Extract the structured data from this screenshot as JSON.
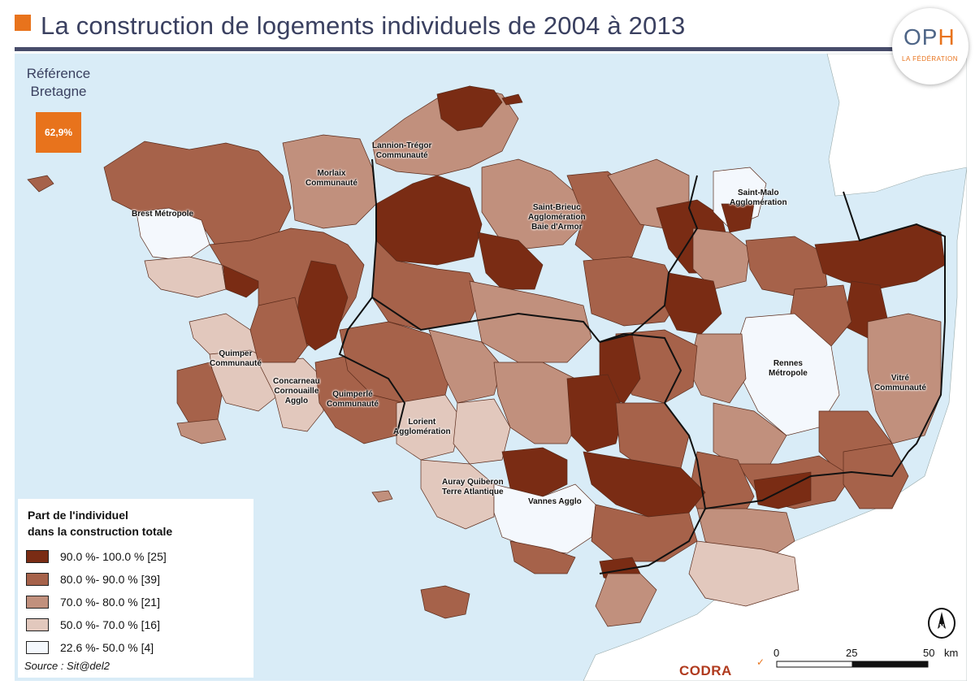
{
  "title": "La construction de logements individuels de 2004 à 2013",
  "logo": {
    "main_o": "OP",
    "main_h": "H",
    "sub": "LA FÉDÉRATION"
  },
  "reference": {
    "label_line1": "Référence",
    "label_line2": "Bretagne",
    "value": "62,9%",
    "color": "#e8731c"
  },
  "legend": {
    "title_line1": "Part de l'individuel",
    "title_line2": "dans la construction totale",
    "classes": [
      {
        "label": "90.0 %- 100.0 % [25]",
        "color": "#7a2c14",
        "range": [
          90.0,
          100.0
        ],
        "count": 25
      },
      {
        "label": "80.0 %- 90.0 % [39]",
        "color": "#a6624a",
        "range": [
          80.0,
          90.0
        ],
        "count": 39
      },
      {
        "label": "70.0 %- 80.0 % [21]",
        "color": "#c1907d",
        "range": [
          70.0,
          80.0
        ],
        "count": 21
      },
      {
        "label": "50.0 %- 70.0 % [16]",
        "color": "#e2c8bd",
        "range": [
          50.0,
          70.0
        ],
        "count": 16
      },
      {
        "label": "22.6 %- 50.0 % [4]",
        "color": "#f4f8fd",
        "range": [
          22.6,
          50.0
        ],
        "count": 4
      }
    ]
  },
  "places": {
    "brest": "Brest Métropole",
    "lannion_1": "Lannion-Trégor",
    "lannion_2": "Communauté",
    "morlaix_1": "Morlaix",
    "morlaix_2": "Communauté",
    "saintbrieuc_1": "Saint-Brieuc",
    "saintbrieuc_2": "Agglomération",
    "saintbrieuc_3": "Baie d'Armor",
    "saintmalo_1": "Saint-Malo",
    "saintmalo_2": "Agglomération",
    "quimper_1": "Quimper",
    "quimper_2": "Communauté",
    "concarneau_1": "Concarneau",
    "concarneau_2": "Cornouaille",
    "concarneau_3": "Agglo",
    "quimperle_1": "Quimperlé",
    "quimperle_2": "Communauté",
    "lorient_1": "Lorient",
    "lorient_2": "Agglomération",
    "rennes_1": "Rennes",
    "rennes_2": "Métropole",
    "vitre_1": "Vitré",
    "vitre_2": "Communauté",
    "auray_1": "Auray Quiberon",
    "auray_2": "Terre Atlantique",
    "vannes": "Vannes Agglo"
  },
  "source": "Source : Sit@del2",
  "credit": "CODRA",
  "scale": {
    "ticks": [
      "0",
      "25",
      "50"
    ],
    "unit": "km"
  },
  "north_label": "N",
  "colors": {
    "sea": "#d9ecf7",
    "land_outside": "#ffffff",
    "title_text": "#3a4060",
    "title_rule": "#474c6a"
  }
}
